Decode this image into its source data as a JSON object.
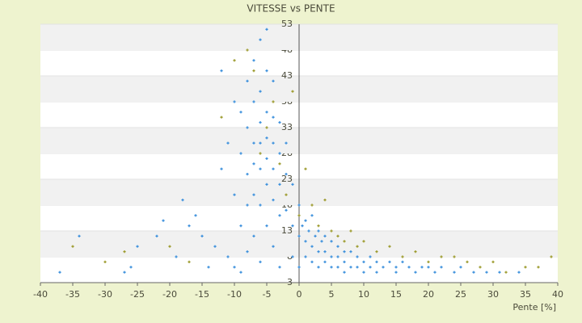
{
  "chart_data": {
    "type": "scatter",
    "title": "VITESSE vs PENTE",
    "x_label": "Pente [%]",
    "xlim": [
      -40,
      40
    ],
    "xticks": [
      -40,
      -35,
      -30,
      -25,
      -20,
      -15,
      -10,
      -5,
      0,
      5,
      10,
      15,
      20,
      25,
      30,
      35,
      40
    ],
    "ylim": [
      3,
      53
    ],
    "yticks": [
      3,
      8,
      13,
      18,
      23,
      28,
      33,
      38,
      43,
      48,
      53
    ],
    "grid": true,
    "series": [
      {
        "color": "#9c9a2c",
        "x": [
          -35,
          -30,
          -27,
          -20,
          -17,
          -12,
          -10,
          -8,
          -7,
          -6,
          -5,
          -4,
          -3,
          -2,
          -1,
          0,
          1,
          2,
          3,
          4,
          5,
          6,
          7,
          8,
          9,
          10,
          12,
          14,
          16,
          18,
          20,
          22,
          24,
          26,
          28,
          30,
          32,
          35,
          37,
          39
        ],
        "values": [
          10,
          7,
          9,
          10,
          7,
          35,
          46,
          48,
          44,
          28,
          33,
          38,
          26,
          20,
          40,
          16,
          25,
          18,
          14,
          19,
          13,
          12,
          11,
          13,
          10,
          11,
          9,
          10,
          8,
          9,
          7,
          8,
          8,
          7,
          6,
          7,
          5,
          6,
          6,
          8
        ]
      },
      {
        "color": "#3a8fdc",
        "x": [
          -37,
          -34,
          -27,
          -26,
          -25,
          -22,
          -21,
          -19,
          -18,
          -17,
          -16,
          -15,
          -14,
          -13,
          -12,
          -12,
          -11,
          -11,
          -10,
          -10,
          -10,
          -9,
          -9,
          -9,
          -9,
          -8,
          -8,
          -8,
          -8,
          -8,
          -7,
          -7,
          -7,
          -7,
          -7,
          -7,
          -6,
          -6,
          -6,
          -6,
          -6,
          -6,
          -6,
          -5,
          -5,
          -5,
          -5,
          -5,
          -5,
          -5,
          -4,
          -4,
          -4,
          -4,
          -4,
          -4,
          -3,
          -3,
          -3,
          -3,
          -3,
          -2,
          -2,
          -2,
          -1,
          -1,
          -1,
          0,
          0,
          0,
          0.5,
          1,
          1,
          1,
          1.5,
          2,
          2,
          2,
          2.5,
          3,
          3,
          3,
          3.5,
          4,
          4,
          4,
          5,
          5,
          5,
          6,
          6,
          6,
          7,
          7,
          7,
          8,
          8,
          9,
          9,
          10,
          10,
          11,
          11,
          12,
          12,
          13,
          14,
          15,
          15,
          16,
          17,
          18,
          19,
          20,
          21,
          22,
          24,
          25,
          27,
          29,
          31,
          34
        ],
        "values": [
          5,
          12,
          5,
          6,
          10,
          12,
          15,
          8,
          19,
          14,
          16,
          12,
          6,
          10,
          44,
          25,
          30,
          8,
          38,
          20,
          6,
          36,
          28,
          14,
          5,
          42,
          33,
          24,
          18,
          9,
          46,
          38,
          30,
          26,
          20,
          12,
          50,
          40,
          34,
          30,
          25,
          18,
          7,
          52,
          44,
          36,
          31,
          27,
          22,
          14,
          42,
          35,
          30,
          25,
          19,
          10,
          34,
          28,
          22,
          16,
          6,
          30,
          24,
          17,
          22,
          14,
          8,
          18,
          12,
          6,
          14,
          15,
          11,
          8,
          13,
          16,
          10,
          7,
          12,
          13,
          9,
          6,
          11,
          12,
          9,
          7,
          11,
          8,
          6,
          10,
          8,
          6,
          9,
          7,
          5,
          9,
          6,
          8,
          6,
          7,
          5,
          8,
          6,
          7,
          5,
          6,
          7,
          6,
          5,
          7,
          6,
          5,
          6,
          6,
          5,
          6,
          5,
          6,
          5,
          5,
          5,
          5
        ]
      }
    ]
  }
}
